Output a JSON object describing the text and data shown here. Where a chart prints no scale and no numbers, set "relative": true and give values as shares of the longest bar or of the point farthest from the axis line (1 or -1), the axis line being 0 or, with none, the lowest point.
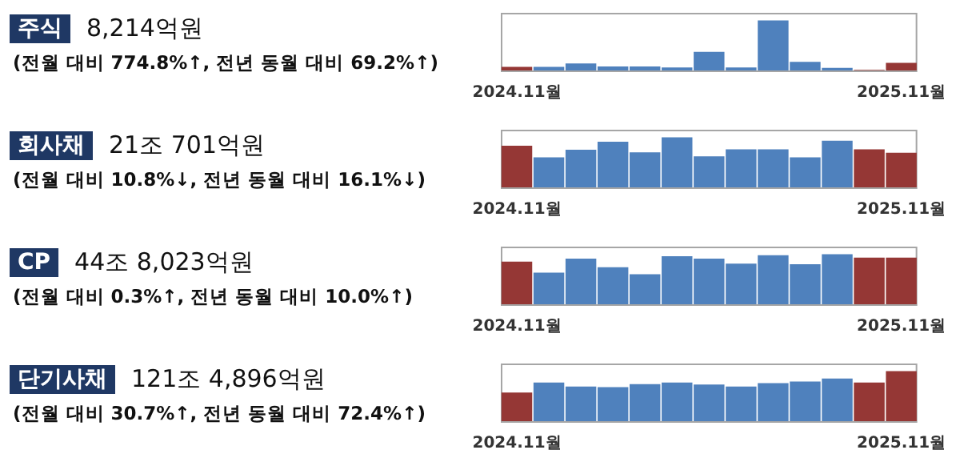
{
  "chart_data": [
    {
      "type": "bar",
      "annotations": [
        "주식",
        "8,214억원",
        "(전월 대비 774.8%↑, 전년 동월 대비 69.2%↑)"
      ],
      "relative": true,
      "grid": false,
      "legend": false,
      "tick_labels": "x",
      "categories": [
        "2024.11월",
        null,
        null,
        null,
        null,
        null,
        null,
        null,
        null,
        null,
        null,
        null,
        "2025.11월"
      ],
      "values": [
        0.07,
        0.07,
        0.14,
        0.08,
        0.08,
        0.06,
        0.37,
        0.06,
        1,
        0.17,
        0.05,
        0.01,
        0.15
      ],
      "colors": [
        "#953735",
        "#4f81bd",
        "#4f81bd",
        "#4f81bd",
        "#4f81bd",
        "#4f81bd",
        "#4f81bd",
        "#4f81bd",
        "#4f81bd",
        "#4f81bd",
        "#4f81bd",
        "#953735",
        "#953735"
      ]
    },
    {
      "type": "bar",
      "annotations": [
        "회사채",
        "21조 701억원",
        "(전월 대비 10.8%↓, 전년 동월 대비 16.1%↓)"
      ],
      "relative": true,
      "grid": false,
      "legend": false,
      "tick_labels": "x",
      "categories": [
        "2024.11월",
        null,
        null,
        null,
        null,
        null,
        null,
        null,
        null,
        null,
        null,
        null,
        "2025.11월"
      ],
      "values": [
        0.83,
        0.6,
        0.75,
        0.91,
        0.7,
        1,
        0.62,
        0.76,
        0.76,
        0.6,
        0.93,
        0.76,
        0.69
      ],
      "colors": [
        "#953735",
        "#4f81bd",
        "#4f81bd",
        "#4f81bd",
        "#4f81bd",
        "#4f81bd",
        "#4f81bd",
        "#4f81bd",
        "#4f81bd",
        "#4f81bd",
        "#4f81bd",
        "#953735",
        "#953735"
      ]
    },
    {
      "type": "bar",
      "annotations": [
        "CP",
        "44조 8,023억원",
        "(전월 대비 0.3%↑, 전년 동월 대비 10.0%↑)"
      ],
      "relative": true,
      "grid": false,
      "legend": false,
      "tick_labels": "x",
      "categories": [
        "2024.11월",
        null,
        null,
        null,
        null,
        null,
        null,
        null,
        null,
        null,
        null,
        null,
        "2025.11월"
      ],
      "values": [
        0.85,
        0.63,
        0.91,
        0.74,
        0.6,
        0.96,
        0.91,
        0.81,
        0.98,
        0.8,
        1,
        0.93,
        0.93
      ],
      "colors": [
        "#953735",
        "#4f81bd",
        "#4f81bd",
        "#4f81bd",
        "#4f81bd",
        "#4f81bd",
        "#4f81bd",
        "#4f81bd",
        "#4f81bd",
        "#4f81bd",
        "#4f81bd",
        "#953735",
        "#953735"
      ]
    },
    {
      "type": "bar",
      "annotations": [
        "단기사채",
        "121조 4,896억원",
        "(전월 대비 30.7%↑, 전년 동월 대비 72.4%↑)"
      ],
      "relative": true,
      "grid": false,
      "legend": false,
      "tick_labels": "x",
      "categories": [
        "2024.11월",
        null,
        null,
        null,
        null,
        null,
        null,
        null,
        null,
        null,
        null,
        null,
        "2025.11월"
      ],
      "values": [
        0.57,
        0.77,
        0.69,
        0.68,
        0.74,
        0.77,
        0.73,
        0.69,
        0.76,
        0.79,
        0.85,
        0.77,
        1
      ],
      "colors": [
        "#953735",
        "#4f81bd",
        "#4f81bd",
        "#4f81bd",
        "#4f81bd",
        "#4f81bd",
        "#4f81bd",
        "#4f81bd",
        "#4f81bd",
        "#4f81bd",
        "#4f81bd",
        "#953735",
        "#953735"
      ]
    }
  ]
}
